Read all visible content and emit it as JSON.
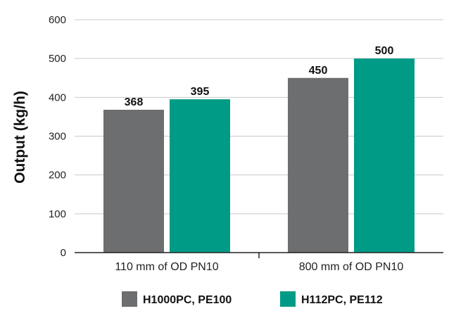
{
  "chart_data": {
    "type": "bar",
    "title": "",
    "xlabel": "",
    "ylabel": "Output (kg/h)",
    "ylim": [
      0,
      600
    ],
    "yticks": [
      0,
      100,
      200,
      300,
      400,
      500,
      600
    ],
    "grid": true,
    "legend_position": "bottom",
    "categories": [
      "110 mm of OD PN10",
      "800 mm of OD PN10"
    ],
    "series": [
      {
        "name": "H1000PC, PE100",
        "values": [
          368,
          450
        ],
        "labels": [
          "368",
          "450"
        ],
        "color": "#6d6e70"
      },
      {
        "name": "H112PC, PE112",
        "values": [
          395,
          500
        ],
        "labels": [
          "395",
          "500"
        ],
        "color": "#009b86"
      }
    ]
  }
}
